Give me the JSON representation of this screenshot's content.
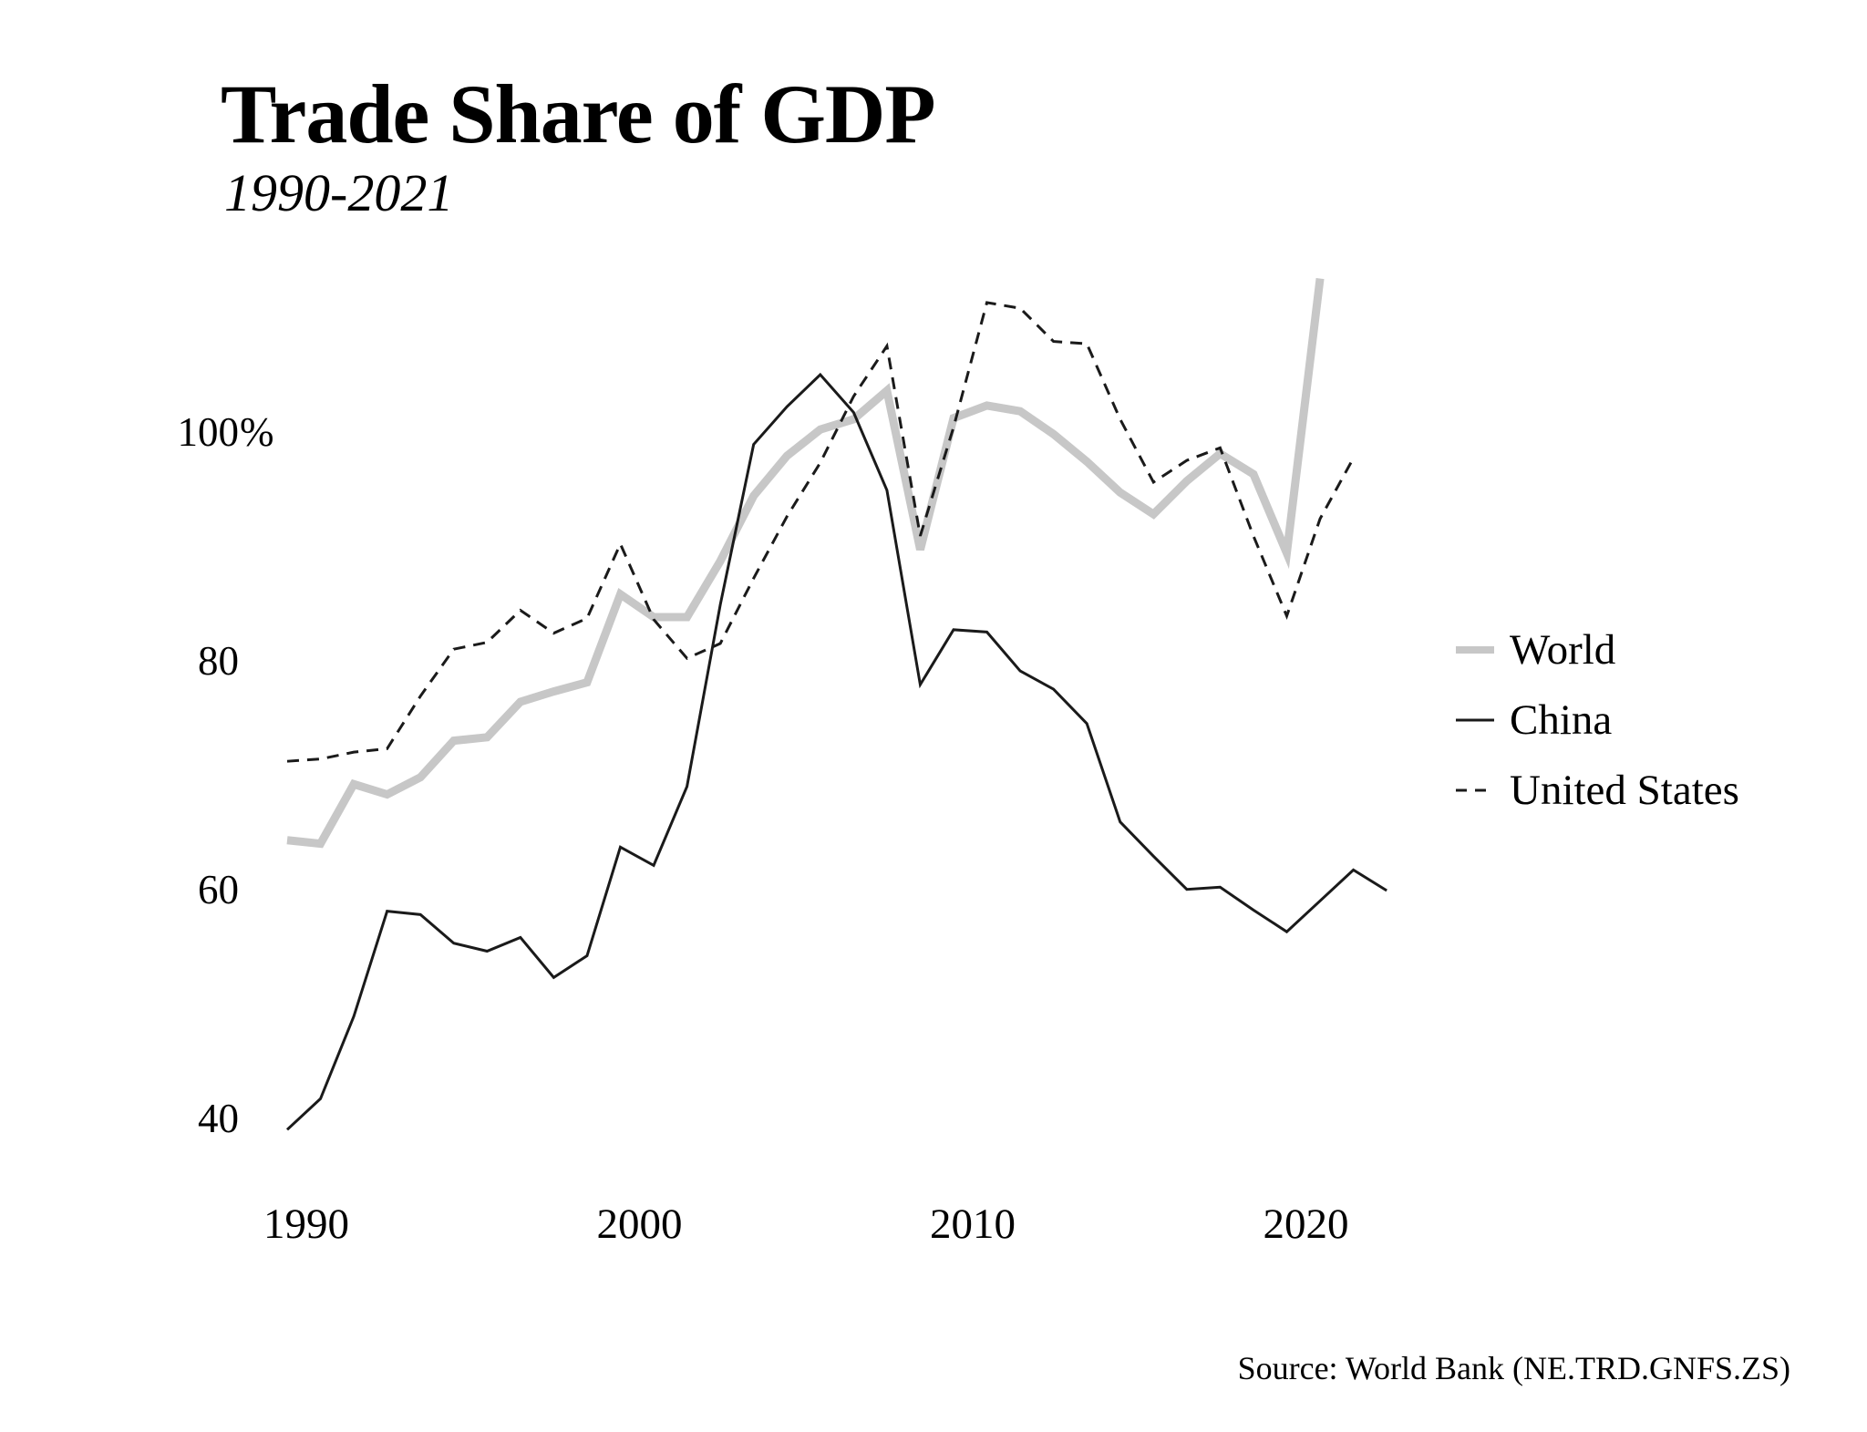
{
  "title": "Trade Share of GDP",
  "subtitle": "1990-2021",
  "source_note": "Source: World Bank (NE.TRD.GNFS.ZS)",
  "colors": {
    "background": "#ffffff",
    "text": "#000000",
    "world_line": "#c7c7c7",
    "china_line": "#1a1a1a",
    "us_line": "#1a1a1a"
  },
  "chart_data": {
    "type": "line",
    "title": "Trade Share of GDP",
    "subtitle": "1990-2021",
    "xlabel": "",
    "ylabel": "",
    "grid": false,
    "legend_position": "right-center",
    "xlim": [
      1989.5,
      2024
    ],
    "ylim": [
      36,
      116
    ],
    "x_ticks": [
      1990,
      2000,
      2010,
      2020
    ],
    "y_ticks": [
      {
        "value": 100,
        "label": "100",
        "suffix": "%"
      },
      {
        "value": 80,
        "label": "80",
        "suffix": ""
      },
      {
        "value": 60,
        "label": "60",
        "suffix": ""
      },
      {
        "value": 40,
        "label": "40",
        "suffix": ""
      }
    ],
    "series": [
      {
        "name": "World",
        "color": "#c7c7c7",
        "line_style": "solid",
        "thickness": "thick",
        "years": [
          1990,
          1991,
          1992,
          1993,
          1994,
          1995,
          1996,
          1997,
          1998,
          1999,
          2000,
          2001,
          2002,
          2003,
          2004,
          2005,
          2006,
          2007,
          2008,
          2009,
          2010,
          2011,
          2012,
          2013,
          2014,
          2015,
          2016,
          2017,
          2018,
          2019,
          2020,
          2021
        ],
        "values": [
          64.4,
          64.1,
          69.3,
          68.4,
          69.9,
          73.1,
          73.4,
          76.5,
          77.4,
          78.2,
          85.9,
          83.9,
          83.9,
          88.8,
          94.5,
          98.0,
          100.3,
          101.2,
          103.7,
          89.8,
          101.3,
          102.4,
          101.9,
          99.9,
          97.5,
          94.8,
          92.9,
          95.8,
          98.2,
          96.4,
          89.5,
          113.5
        ]
      },
      {
        "name": "China",
        "color": "#1a1a1a",
        "line_style": "solid",
        "thickness": "thin",
        "years": [
          1990,
          1991,
          1992,
          1993,
          1994,
          1995,
          1996,
          1997,
          1998,
          1999,
          2000,
          2001,
          2002,
          2003,
          2004,
          2005,
          2006,
          2007,
          2008,
          2009,
          2010,
          2011,
          2012,
          2013,
          2014,
          2015,
          2016,
          2017,
          2018,
          2019,
          2020,
          2021,
          2022,
          2023
        ],
        "values": [
          39.1,
          41.8,
          49.0,
          58.2,
          57.9,
          55.4,
          54.7,
          55.9,
          52.4,
          54.3,
          63.8,
          62.2,
          69.1,
          85.0,
          99.0,
          102.3,
          105.1,
          101.8,
          95.0,
          78.0,
          82.8,
          82.6,
          79.2,
          77.6,
          74.6,
          66.0,
          63.0,
          60.1,
          60.3,
          58.3,
          56.4,
          59.1,
          61.8,
          60.0
        ]
      },
      {
        "name": "United States",
        "color": "#1a1a1a",
        "line_style": "dashed",
        "thickness": "thin",
        "years": [
          1990,
          1991,
          1992,
          1993,
          1994,
          1995,
          1996,
          1997,
          1998,
          1999,
          2000,
          2001,
          2002,
          2003,
          2004,
          2005,
          2006,
          2007,
          2008,
          2009,
          2010,
          2011,
          2012,
          2013,
          2014,
          2015,
          2016,
          2017,
          2018,
          2019,
          2020,
          2021,
          2022
        ],
        "values": [
          71.3,
          71.5,
          72.1,
          72.4,
          77.0,
          81.1,
          81.7,
          84.5,
          82.5,
          83.8,
          90.3,
          83.7,
          80.3,
          81.6,
          87.3,
          92.7,
          97.4,
          103.2,
          107.6,
          91.0,
          100.5,
          111.4,
          110.9,
          108.0,
          107.8,
          101.2,
          95.7,
          97.6,
          98.7,
          91.0,
          84.0,
          92.5,
          97.8
        ]
      }
    ]
  }
}
